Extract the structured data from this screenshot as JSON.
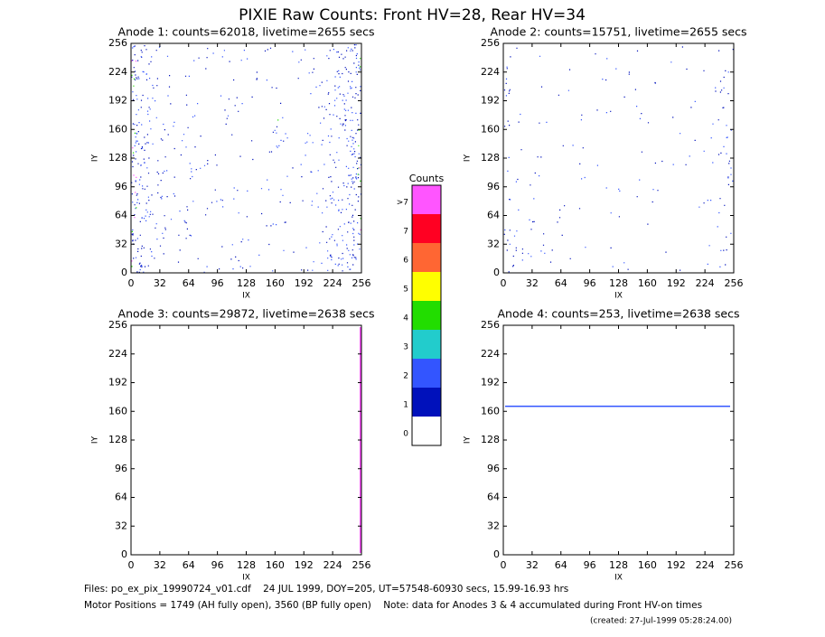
{
  "title": "PIXIE Raw Counts:  Front HV=28, Rear HV=34",
  "chart_data": [
    {
      "type": "image",
      "title": "Anode 1: counts=62018, livetime=2655 secs",
      "xlabel": "IX",
      "ylabel": "IY",
      "xlim": [
        0,
        256
      ],
      "ylim": [
        0,
        256
      ],
      "xticks": [
        0,
        32,
        64,
        96,
        128,
        160,
        192,
        224,
        256
      ],
      "yticks": [
        0,
        32,
        64,
        96,
        128,
        160,
        192,
        224,
        256
      ]
    },
    {
      "type": "image",
      "title": "Anode 2: counts=15751, livetime=2655 secs",
      "xlabel": "IX",
      "ylabel": "IY",
      "xlim": [
        0,
        256
      ],
      "ylim": [
        0,
        256
      ],
      "xticks": [
        0,
        32,
        64,
        96,
        128,
        160,
        192,
        224,
        256
      ],
      "yticks": [
        0,
        32,
        64,
        96,
        128,
        160,
        192,
        224,
        256
      ]
    },
    {
      "type": "image",
      "title": "Anode 3: counts=29872, livetime=2638 secs",
      "xlabel": "IX",
      "ylabel": "IY",
      "xlim": [
        0,
        256
      ],
      "ylim": [
        0,
        256
      ],
      "xticks": [
        0,
        32,
        64,
        96,
        128,
        160,
        192,
        224,
        256
      ],
      "yticks": [
        0,
        32,
        64,
        96,
        128,
        160,
        192,
        224,
        256
      ]
    },
    {
      "type": "image",
      "title": "Anode 4: counts=253, livetime=2638 secs",
      "xlabel": "IX",
      "ylabel": "IY",
      "xlim": [
        0,
        256
      ],
      "ylim": [
        0,
        256
      ],
      "xticks": [
        0,
        32,
        64,
        96,
        128,
        160,
        192,
        224,
        256
      ],
      "yticks": [
        0,
        32,
        64,
        96,
        128,
        160,
        192,
        224,
        256
      ]
    }
  ],
  "colorbar": {
    "title": "Counts",
    "ticks": [
      0,
      1,
      2,
      3,
      4,
      5,
      6,
      7
    ],
    "overflow_label": ">7",
    "colors": [
      "#ffffff",
      "#0011bb",
      "#3355ff",
      "#22cccc",
      "#22dd00",
      "#ffff00",
      "#ff6633",
      "#ff0022",
      "#ff55ff"
    ]
  },
  "footer": [
    "Files: po_ex_pix_19990724_v01.cdf    24 JUL 1999, DOY=205, UT=57548-60930 secs, 15.99-16.93 hrs",
    "Motor Positions = 1749 (AH fully open), 3560 (BP fully open)    Note: data for Anodes 3 & 4 accumulated during Front HV-on times",
    "(created: 27-Jul-1999 05:28:24.00)"
  ]
}
